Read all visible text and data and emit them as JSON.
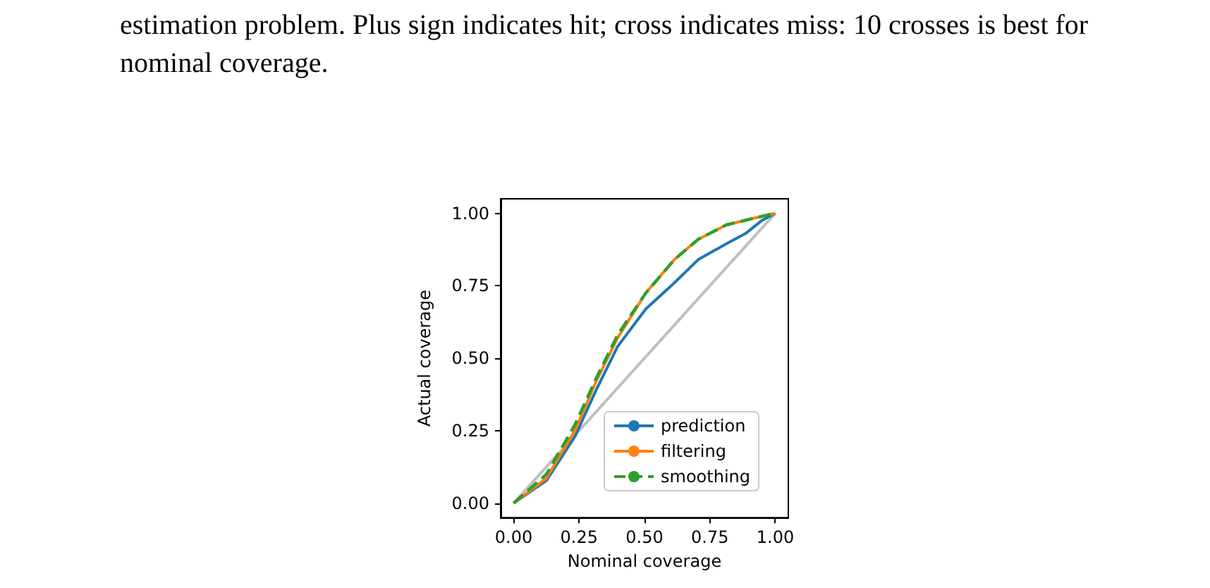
{
  "chart_data": {
    "type": "line",
    "annotations": [
      "estimation problem. Plus sign indicates hit; cross indicates miss: 10 crosses is best for",
      "nominal coverage."
    ],
    "xlabel": "Nominal coverage",
    "ylabel": "Actual coverage",
    "xlim": [
      -0.05,
      1.05
    ],
    "ylim": [
      -0.05,
      1.05
    ],
    "xticks": [
      {
        "value": 0,
        "label": "0.00"
      },
      {
        "value": 0.25,
        "label": "0.25"
      },
      {
        "value": 0.5,
        "label": "0.50"
      },
      {
        "value": 0.75,
        "label": "0.75"
      },
      {
        "value": 1,
        "label": "1.00"
      }
    ],
    "yticks": [
      {
        "value": 0,
        "label": "0.00"
      },
      {
        "value": 0.25,
        "label": "0.25"
      },
      {
        "value": 0.5,
        "label": "0.50"
      },
      {
        "value": 0.75,
        "label": "0.75"
      },
      {
        "value": 1,
        "label": "1.00"
      }
    ],
    "grid": false,
    "legend": "bottom right",
    "marker": "none",
    "series": [
      {
        "color": "#bfbfbf",
        "x": [
          0,
          1
        ],
        "values": [
          0,
          1
        ]
      },
      {
        "name": "prediction",
        "color": "#1f77b4",
        "line_style": "solid",
        "x": [
          0,
          0.125,
          0.234,
          0.315,
          0.397,
          0.505,
          0.614,
          0.705,
          0.813,
          0.886,
          0.95,
          1
        ],
        "values": [
          0,
          0.078,
          0.23,
          0.39,
          0.54,
          0.67,
          0.76,
          0.84,
          0.895,
          0.93,
          0.976,
          1
        ]
      },
      {
        "name": "filtering",
        "color": "#ff7f0e",
        "line_style": "solid",
        "x": [
          0,
          0.125,
          0.234,
          0.315,
          0.397,
          0.505,
          0.614,
          0.705,
          0.813,
          0.904,
          1
        ],
        "values": [
          0,
          0.086,
          0.25,
          0.42,
          0.57,
          0.725,
          0.84,
          0.91,
          0.96,
          0.98,
          1
        ]
      },
      {
        "name": "smoothing",
        "color": "#2ca02c",
        "line_style": "dashed",
        "x": [
          0,
          0.125,
          0.234,
          0.315,
          0.397,
          0.505,
          0.614,
          0.705,
          0.813,
          0.904,
          1
        ],
        "values": [
          0,
          0.1,
          0.27,
          0.43,
          0.58,
          0.725,
          0.84,
          0.91,
          0.96,
          0.98,
          1
        ]
      }
    ]
  }
}
